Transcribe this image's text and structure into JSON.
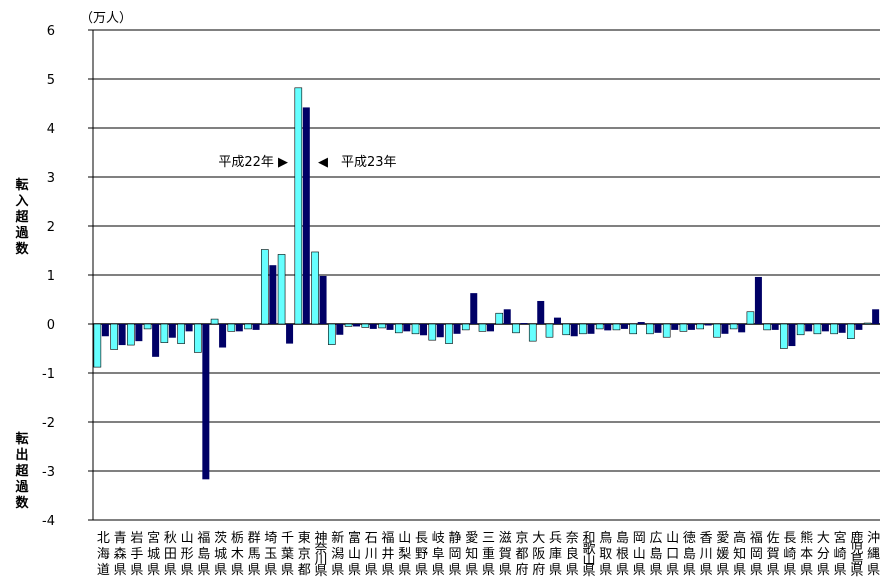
{
  "chart_data": {
    "type": "bar",
    "unit_label": "（万人）",
    "ylim": [
      -4,
      6
    ],
    "yticks": [
      6,
      5,
      4,
      3,
      2,
      1,
      0,
      -1,
      -2,
      -3,
      -4
    ],
    "ylabel_top": "転入超過数",
    "ylabel_bottom": "転出超過数",
    "grid": true,
    "colors": {
      "series0": "#66ffff",
      "series1": "#000066"
    },
    "annotation_left": "平成22年 ▶",
    "annotation_right": "◀　平成23年",
    "categories": [
      "北海道",
      "青森県",
      "岩手県",
      "宮城県",
      "秋田県",
      "山形県",
      "福島県",
      "茨城県",
      "栃木県",
      "群馬県",
      "埼玉県",
      "千葉県",
      "東京都",
      "神奈川県",
      "新潟県",
      "富山県",
      "石川県",
      "福井県",
      "山梨県",
      "長野県",
      "岐阜県",
      "静岡県",
      "愛知県",
      "三重県",
      "滋賀県",
      "京都府",
      "大阪府",
      "兵庫県",
      "奈良県",
      "和歌山県",
      "鳥取県",
      "島根県",
      "岡山県",
      "広島県",
      "山口県",
      "徳島県",
      "香川県",
      "愛媛県",
      "高知県",
      "福岡県",
      "佐賀県",
      "長崎県",
      "熊本県",
      "大分県",
      "宮崎県",
      "鹿児島県",
      "沖縄県"
    ],
    "series": [
      {
        "name": "平成22年",
        "values": [
          -0.88,
          -0.52,
          -0.43,
          -0.1,
          -0.38,
          -0.4,
          -0.58,
          0.1,
          -0.15,
          -0.1,
          1.52,
          1.42,
          4.82,
          1.47,
          -0.42,
          -0.05,
          -0.07,
          -0.08,
          -0.18,
          -0.2,
          -0.33,
          -0.4,
          -0.12,
          -0.15,
          0.22,
          -0.18,
          -0.35,
          -0.27,
          -0.22,
          -0.2,
          -0.1,
          -0.12,
          -0.2,
          -0.2,
          -0.27,
          -0.15,
          -0.1,
          -0.27,
          -0.1,
          0.25,
          -0.12,
          -0.5,
          -0.22,
          -0.2,
          -0.2,
          -0.3,
          0.02
        ]
      },
      {
        "name": "平成23年",
        "values": [
          -0.25,
          -0.43,
          -0.35,
          -0.67,
          -0.28,
          -0.15,
          -3.17,
          -0.48,
          -0.15,
          -0.12,
          1.2,
          -0.4,
          4.42,
          0.98,
          -0.22,
          -0.05,
          -0.1,
          -0.12,
          -0.15,
          -0.23,
          -0.27,
          -0.2,
          0.63,
          -0.15,
          0.3,
          0.02,
          0.47,
          0.13,
          -0.25,
          -0.2,
          -0.13,
          -0.1,
          0.04,
          -0.18,
          -0.12,
          -0.12,
          -0.03,
          -0.2,
          -0.17,
          0.96,
          -0.12,
          -0.45,
          -0.15,
          -0.15,
          -0.18,
          -0.12,
          0.3
        ]
      }
    ]
  }
}
